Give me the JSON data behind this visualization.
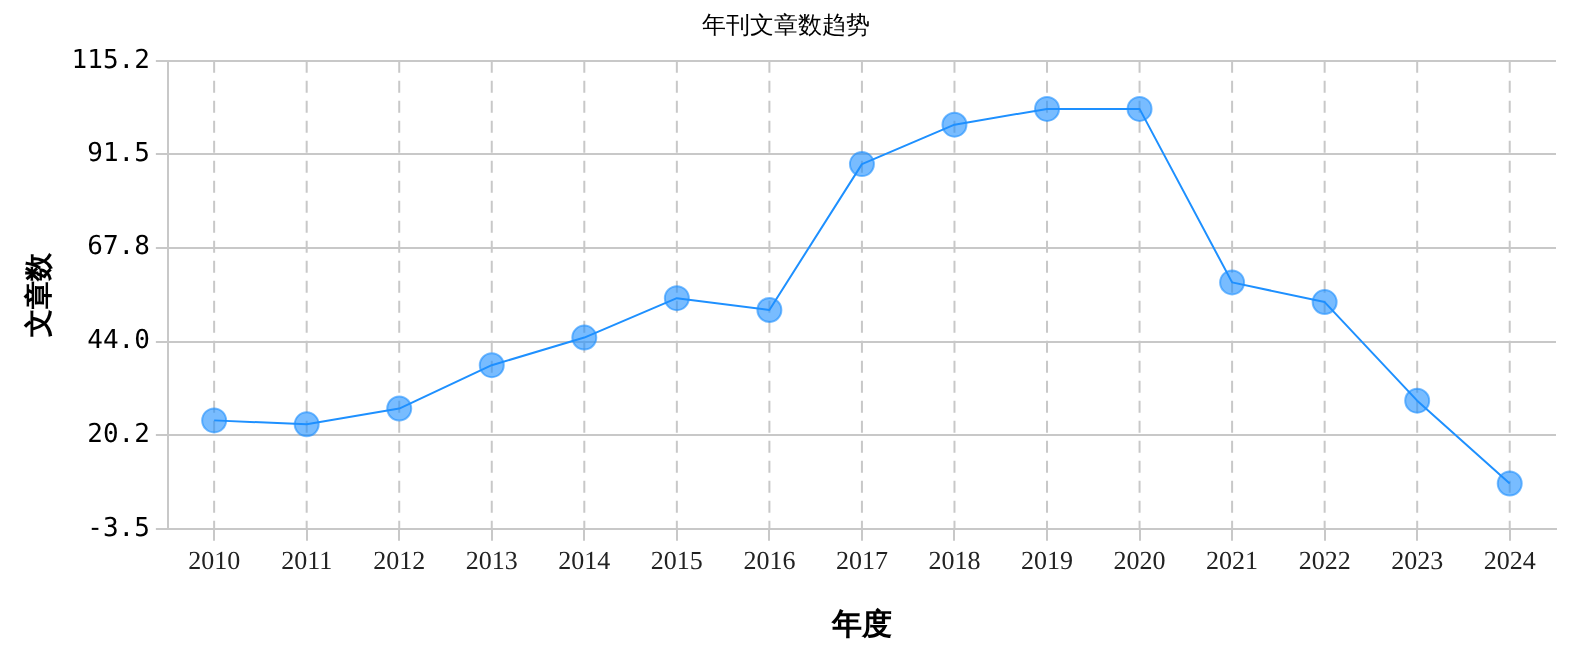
{
  "chart_data": {
    "type": "line",
    "title": "年刊文章数趋势",
    "xlabel": "年度",
    "ylabel": "文章数",
    "categories": [
      "2010",
      "2011",
      "2012",
      "2013",
      "2014",
      "2015",
      "2016",
      "2017",
      "2018",
      "2019",
      "2020",
      "2021",
      "2022",
      "2023",
      "2024"
    ],
    "series": [
      {
        "color": "#1e90ff",
        "values": [
          24,
          23,
          27,
          38,
          45,
          55,
          52,
          89,
          99,
          103,
          103,
          59,
          54,
          29,
          8
        ]
      }
    ],
    "ylim": [
      -3.5,
      115.2
    ],
    "yticks": [
      {
        "value": -3.5,
        "label": "-3.5"
      },
      {
        "value": 20.2,
        "label": "20.2"
      },
      {
        "value": 44.0,
        "label": "44.0"
      },
      {
        "value": 67.8,
        "label": "67.8"
      },
      {
        "value": 91.5,
        "label": "91.5"
      },
      {
        "value": 115.2,
        "label": "115.2"
      }
    ],
    "grid": true,
    "marker": "circle",
    "legend": false
  }
}
